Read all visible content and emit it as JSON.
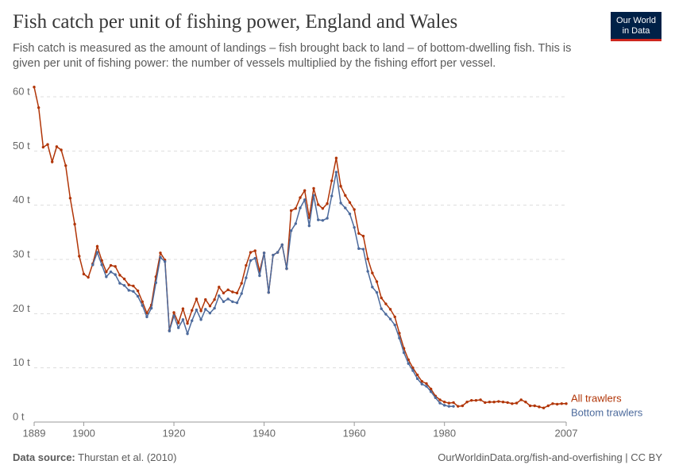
{
  "chart_data": {
    "type": "line",
    "title": "Fish catch per unit of fishing power, England and Wales",
    "subtitle": "Fish catch is measured as the amount of landings – fish brought back to land – of bottom-dwelling fish. This is given per unit of fishing power: the number of vessels multiplied by the fishing effort per vessel.",
    "source_label": "Data source:",
    "source": "Thurstan et al. (2010)",
    "url": "OurWorldinData.org/fish-and-overfishing | CC BY",
    "logo": [
      "Our World",
      "in Data"
    ],
    "x": [
      1889,
      1890,
      1891,
      1892,
      1893,
      1894,
      1895,
      1896,
      1897,
      1898,
      1899,
      1900,
      1901,
      1902,
      1903,
      1904,
      1905,
      1906,
      1907,
      1908,
      1909,
      1910,
      1911,
      1912,
      1913,
      1914,
      1915,
      1916,
      1917,
      1918,
      1919,
      1920,
      1921,
      1922,
      1923,
      1924,
      1925,
      1926,
      1927,
      1928,
      1929,
      1930,
      1931,
      1932,
      1933,
      1934,
      1935,
      1936,
      1937,
      1938,
      1939,
      1940,
      1941,
      1942,
      1943,
      1944,
      1945,
      1946,
      1947,
      1948,
      1949,
      1950,
      1951,
      1952,
      1953,
      1954,
      1955,
      1956,
      1957,
      1958,
      1959,
      1960,
      1961,
      1962,
      1963,
      1964,
      1965,
      1966,
      1967,
      1968,
      1969,
      1970,
      1971,
      1972,
      1973,
      1974,
      1975,
      1976,
      1977,
      1978,
      1979,
      1980,
      1981,
      1982,
      1983,
      1984,
      1985,
      1986,
      1987,
      1988,
      1989,
      1990,
      1991,
      1992,
      1993,
      1994,
      1995,
      1996,
      1997,
      1998,
      1999,
      2000,
      2001,
      2002,
      2003,
      2004,
      2005,
      2006,
      2007
    ],
    "series": [
      {
        "name": "All trawlers",
        "color": "#b13507",
        "values": [
          61.8,
          58,
          50.7,
          51.2,
          48,
          50.8,
          50.2,
          47.3,
          41.3,
          36.5,
          30.6,
          27.3,
          26.7,
          29.2,
          32.4,
          29.8,
          27.7,
          28.9,
          28.7,
          27.1,
          26.4,
          25.3,
          25.1,
          24.2,
          22.2,
          20.1,
          21.6,
          26.8,
          31.2,
          29.9,
          16.9,
          20.2,
          18.3,
          20.9,
          18.2,
          20.6,
          22.7,
          20.5,
          22.6,
          21.4,
          22.6,
          24.9,
          23.8,
          24.4,
          24.0,
          23.8,
          25.6,
          28.9,
          31.3,
          31.6,
          27.8,
          31.2,
          23.9,
          30.8,
          31.3,
          32.7,
          28.3,
          39.0,
          39.4,
          41.4,
          42.7,
          37.7,
          43.1,
          40.1,
          39.4,
          40.3,
          44.5,
          48.7,
          43.5,
          41.8,
          40.5,
          39.2,
          34.8,
          34.3,
          30.1,
          27.5,
          25.9,
          22.9,
          21.8,
          20.8,
          19.4,
          16.4,
          13.6,
          11.5,
          10.0,
          8.7,
          7.5,
          7.1,
          6.1,
          4.8,
          4.1,
          3.7,
          3.5,
          3.6,
          2.9,
          3.0,
          3.7,
          4.0,
          4.0,
          4.1,
          3.6,
          3.7,
          3.7,
          3.8,
          3.7,
          3.6,
          3.4,
          3.5,
          4.1,
          3.7,
          3.0,
          3.0,
          2.8,
          2.6,
          3.0,
          3.4,
          3.3,
          3.4,
          3.4
        ]
      },
      {
        "name": "Bottom trawlers",
        "color": "#4c6a9c",
        "values": [
          null,
          null,
          null,
          null,
          null,
          null,
          null,
          null,
          null,
          null,
          null,
          null,
          null,
          29.0,
          31.3,
          29.0,
          26.8,
          27.7,
          27.2,
          25.6,
          25.2,
          24.3,
          24.1,
          23.2,
          21.5,
          19.4,
          21.0,
          25.7,
          30.4,
          29.6,
          16.8,
          19.6,
          17.4,
          18.9,
          16.3,
          18.7,
          20.7,
          18.9,
          20.8,
          20.1,
          21.0,
          23.3,
          22.2,
          22.7,
          22.2,
          22.0,
          23.7,
          26.6,
          29.8,
          30.2,
          27.0,
          31.2,
          23.9,
          30.8,
          31.3,
          32.7,
          28.3,
          35.3,
          36.6,
          39.5,
          41.0,
          36.2,
          41.8,
          37.3,
          37.2,
          37.6,
          41.7,
          46.1,
          40.4,
          39.5,
          38.4,
          35.9,
          32.0,
          31.9,
          27.8,
          24.9,
          23.9,
          20.9,
          19.9,
          19.0,
          17.9,
          15.5,
          12.8,
          10.8,
          9.5,
          8.0,
          7.0,
          6.6,
          5.6,
          4.5,
          3.5,
          3.1,
          2.9,
          2.9,
          null,
          null,
          null,
          null,
          null,
          null,
          null,
          null,
          null,
          null,
          null,
          null,
          null,
          null,
          null,
          null,
          null,
          null,
          null,
          null,
          null,
          null,
          null,
          null,
          null
        ]
      }
    ],
    "xlim": [
      1889,
      2007
    ],
    "xticks": [
      1889,
      1900,
      1920,
      1940,
      1960,
      1980,
      2007
    ],
    "ylim": [
      0,
      60
    ],
    "yticks": [
      {
        "value": 0,
        "label": "0 t"
      },
      {
        "value": 10,
        "label": "10 t"
      },
      {
        "value": 20,
        "label": "20 t"
      },
      {
        "value": 30,
        "label": "30 t"
      },
      {
        "value": 40,
        "label": "40 t"
      },
      {
        "value": 50,
        "label": "50 t"
      },
      {
        "value": 60,
        "label": "60 t"
      }
    ],
    "grid": true
  }
}
